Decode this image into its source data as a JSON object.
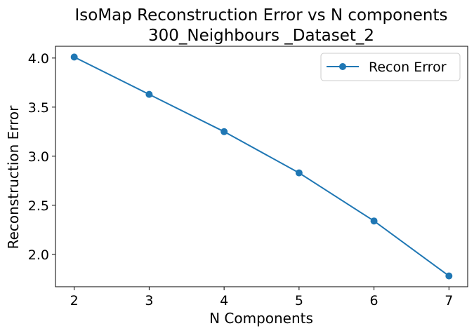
{
  "chart_data": {
    "type": "line",
    "title": "IsoMap Reconstruction Error vs N components",
    "subtitle": "300_Neighbours _Dataset_2",
    "xlabel": "N Components",
    "ylabel": "Reconstruction Error",
    "x": [
      2,
      3,
      4,
      5,
      6,
      7
    ],
    "xticks": [
      "2",
      "3",
      "4",
      "5",
      "6",
      "7"
    ],
    "yticks": [
      "2.0",
      "2.5",
      "3.0",
      "3.5",
      "4.0"
    ],
    "xlim": [
      1.75,
      7.25
    ],
    "ylim": [
      1.67,
      4.12
    ],
    "grid": false,
    "legend_position": "top-right",
    "series": [
      {
        "name": "Recon Error",
        "color": "#1f77b4",
        "marker": "circle",
        "values": [
          4.01,
          3.63,
          3.25,
          2.83,
          2.34,
          1.78
        ]
      }
    ]
  }
}
